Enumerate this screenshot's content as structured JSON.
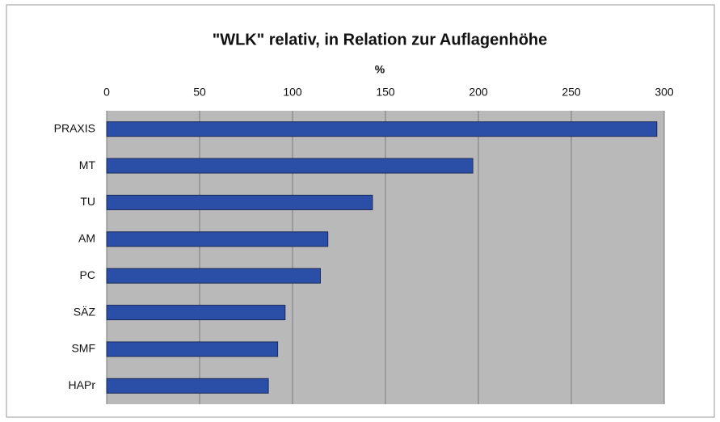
{
  "chart_data": {
    "type": "bar",
    "orientation": "horizontal",
    "title": "\"WLK\" relativ, in Relation zur Auflagenhöhe",
    "x_label": "%",
    "categories": [
      "PRAXIS",
      "MT",
      "TU",
      "AM",
      "PC",
      "SÄZ",
      "SMF",
      "HAPr"
    ],
    "values": [
      296,
      197,
      143,
      119,
      115,
      96,
      92,
      87
    ],
    "color": "#2b4fa6",
    "xlim": [
      0,
      300
    ],
    "xticks": [
      0,
      50,
      100,
      150,
      200,
      250,
      300
    ],
    "grid": true
  }
}
